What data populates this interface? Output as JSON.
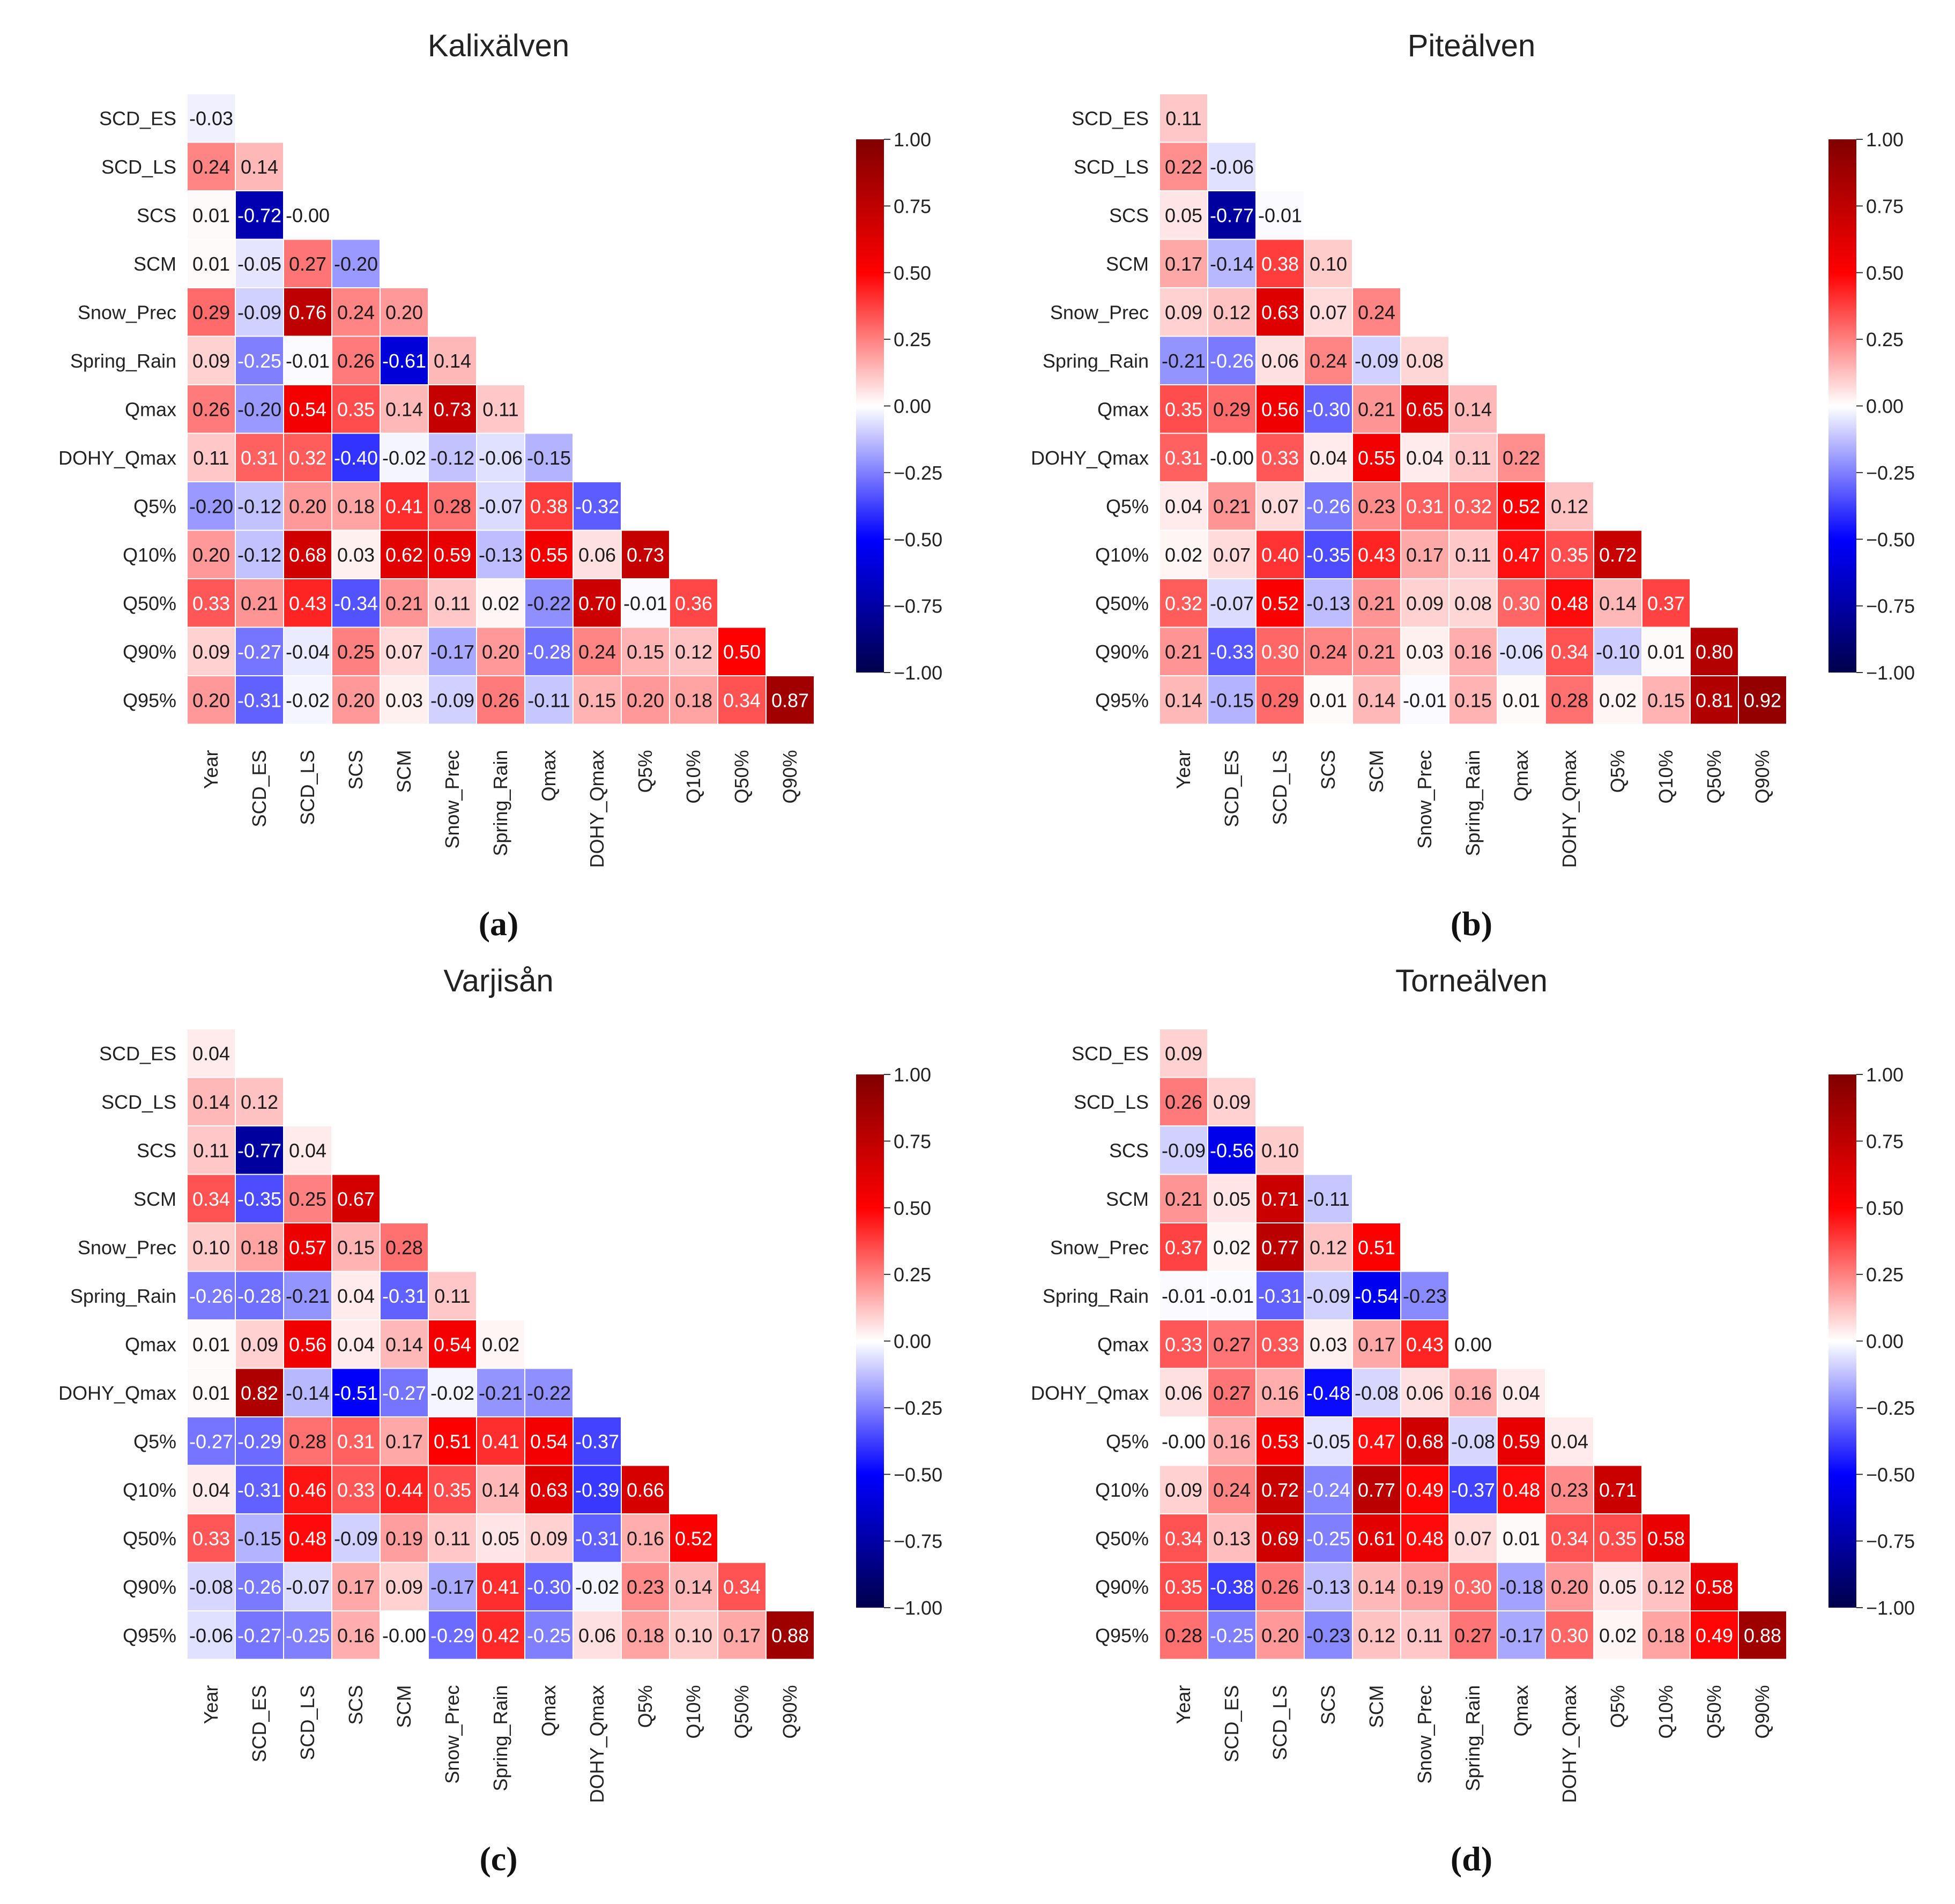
{
  "chart_data": [
    {
      "type": "heatmap",
      "panel_label": "(a)",
      "title": "Kalixälven",
      "row_labels": [
        "SCD_ES",
        "SCD_LS",
        "SCS",
        "SCM",
        "Snow_Prec",
        "Spring_Rain",
        "Qmax",
        "DOHY_Qmax",
        "Q5%",
        "Q10%",
        "Q50%",
        "Q90%",
        "Q95%"
      ],
      "col_labels": [
        "Year",
        "SCD_ES",
        "SCD_LS",
        "SCS",
        "SCM",
        "Snow_Prec",
        "Spring_Rain",
        "Qmax",
        "DOHY_Qmax",
        "Q5%",
        "Q10%",
        "Q50%",
        "Q90%"
      ],
      "values": [
        [
          -0.03
        ],
        [
          0.24,
          0.14
        ],
        [
          0.01,
          -0.72,
          -0.0
        ],
        [
          0.01,
          -0.05,
          0.27,
          -0.2
        ],
        [
          0.29,
          -0.09,
          0.76,
          0.24,
          0.2
        ],
        [
          0.09,
          -0.25,
          -0.01,
          0.26,
          -0.61,
          0.14
        ],
        [
          0.26,
          -0.2,
          0.54,
          0.35,
          0.14,
          0.73,
          0.11
        ],
        [
          0.11,
          0.31,
          0.32,
          -0.4,
          -0.02,
          -0.12,
          -0.06,
          -0.15
        ],
        [
          -0.2,
          -0.12,
          0.2,
          0.18,
          0.41,
          0.28,
          -0.07,
          0.38,
          -0.32
        ],
        [
          0.2,
          -0.12,
          0.68,
          0.03,
          0.62,
          0.59,
          -0.13,
          0.55,
          0.06,
          0.73
        ],
        [
          0.33,
          0.21,
          0.43,
          -0.34,
          0.21,
          0.11,
          0.02,
          -0.22,
          0.7,
          -0.01,
          0.36
        ],
        [
          0.09,
          -0.27,
          -0.04,
          0.25,
          0.07,
          -0.17,
          0.2,
          -0.28,
          0.24,
          0.15,
          0.12,
          0.5
        ],
        [
          0.2,
          -0.31,
          -0.02,
          0.2,
          0.03,
          -0.09,
          0.26,
          -0.11,
          0.15,
          0.2,
          0.18,
          0.34,
          0.87
        ]
      ],
      "colorbar": {
        "range": [
          -1,
          1
        ],
        "ticks": [
          "1.00",
          "0.75",
          "0.50",
          "0.25",
          "0.00",
          "−0.25",
          "−0.50",
          "−0.75",
          "−1.00"
        ],
        "colormap": "seismic"
      }
    },
    {
      "type": "heatmap",
      "panel_label": "(b)",
      "title": "Piteälven",
      "row_labels": [
        "SCD_ES",
        "SCD_LS",
        "SCS",
        "SCM",
        "Snow_Prec",
        "Spring_Rain",
        "Qmax",
        "DOHY_Qmax",
        "Q5%",
        "Q10%",
        "Q50%",
        "Q90%",
        "Q95%"
      ],
      "col_labels": [
        "Year",
        "SCD_ES",
        "SCD_LS",
        "SCS",
        "SCM",
        "Snow_Prec",
        "Spring_Rain",
        "Qmax",
        "DOHY_Qmax",
        "Q5%",
        "Q10%",
        "Q50%",
        "Q90%"
      ],
      "values": [
        [
          0.11
        ],
        [
          0.22,
          -0.06
        ],
        [
          0.05,
          -0.77,
          -0.01
        ],
        [
          0.17,
          -0.14,
          0.38,
          0.1
        ],
        [
          0.09,
          0.12,
          0.63,
          0.07,
          0.24
        ],
        [
          -0.21,
          -0.26,
          0.06,
          0.24,
          -0.09,
          0.08
        ],
        [
          0.35,
          0.29,
          0.56,
          -0.3,
          0.21,
          0.65,
          0.14
        ],
        [
          0.31,
          -0.0,
          0.33,
          0.04,
          0.55,
          0.04,
          0.11,
          0.22
        ],
        [
          0.04,
          0.21,
          0.07,
          -0.26,
          0.23,
          0.31,
          0.32,
          0.52,
          0.12
        ],
        [
          0.02,
          0.07,
          0.4,
          -0.35,
          0.43,
          0.17,
          0.11,
          0.47,
          0.35,
          0.72
        ],
        [
          0.32,
          -0.07,
          0.52,
          -0.13,
          0.21,
          0.09,
          0.08,
          0.3,
          0.48,
          0.14,
          0.37
        ],
        [
          0.21,
          -0.33,
          0.3,
          0.24,
          0.21,
          0.03,
          0.16,
          -0.06,
          0.34,
          -0.1,
          0.01,
          0.8
        ],
        [
          0.14,
          -0.15,
          0.29,
          0.01,
          0.14,
          -0.01,
          0.15,
          0.01,
          0.28,
          0.02,
          0.15,
          0.81,
          0.92
        ]
      ],
      "colorbar": {
        "range": [
          -1,
          1
        ],
        "ticks": [
          "1.00",
          "0.75",
          "0.50",
          "0.25",
          "0.00",
          "−0.25",
          "−0.50",
          "−0.75",
          "−1.00"
        ],
        "colormap": "seismic"
      }
    },
    {
      "type": "heatmap",
      "panel_label": "(c)",
      "title": "Varjisån",
      "row_labels": [
        "SCD_ES",
        "SCD_LS",
        "SCS",
        "SCM",
        "Snow_Prec",
        "Spring_Rain",
        "Qmax",
        "DOHY_Qmax",
        "Q5%",
        "Q10%",
        "Q50%",
        "Q90%",
        "Q95%"
      ],
      "col_labels": [
        "Year",
        "SCD_ES",
        "SCD_LS",
        "SCS",
        "SCM",
        "Snow_Prec",
        "Spring_Rain",
        "Qmax",
        "DOHY_Qmax",
        "Q5%",
        "Q10%",
        "Q50%",
        "Q90%"
      ],
      "values": [
        [
          0.04
        ],
        [
          0.14,
          0.12
        ],
        [
          0.11,
          -0.77,
          0.04
        ],
        [
          0.34,
          -0.35,
          0.25,
          0.67
        ],
        [
          0.1,
          0.18,
          0.57,
          0.15,
          0.28
        ],
        [
          -0.26,
          -0.28,
          -0.21,
          0.04,
          -0.31,
          0.11
        ],
        [
          0.01,
          0.09,
          0.56,
          0.04,
          0.14,
          0.54,
          0.02
        ],
        [
          0.01,
          0.82,
          -0.14,
          -0.51,
          -0.27,
          -0.02,
          -0.21,
          -0.22
        ],
        [
          -0.27,
          -0.29,
          0.28,
          0.31,
          0.17,
          0.51,
          0.41,
          0.54,
          -0.37
        ],
        [
          0.04,
          -0.31,
          0.46,
          0.33,
          0.44,
          0.35,
          0.14,
          0.63,
          -0.39,
          0.66
        ],
        [
          0.33,
          -0.15,
          0.48,
          -0.09,
          0.19,
          0.11,
          0.05,
          0.09,
          -0.31,
          0.16,
          0.52
        ],
        [
          -0.08,
          -0.26,
          -0.07,
          0.17,
          0.09,
          -0.17,
          0.41,
          -0.3,
          -0.02,
          0.23,
          0.14,
          0.34
        ],
        [
          -0.06,
          -0.27,
          -0.25,
          0.16,
          -0.0,
          -0.29,
          0.42,
          -0.25,
          0.06,
          0.18,
          0.1,
          0.17,
          0.88
        ]
      ],
      "colorbar": {
        "range": [
          -1,
          1
        ],
        "ticks": [
          "1.00",
          "0.75",
          "0.50",
          "0.25",
          "0.00",
          "−0.25",
          "−0.50",
          "−0.75",
          "−1.00"
        ],
        "colormap": "seismic"
      }
    },
    {
      "type": "heatmap",
      "panel_label": "(d)",
      "title": "Torneälven",
      "row_labels": [
        "SCD_ES",
        "SCD_LS",
        "SCS",
        "SCM",
        "Snow_Prec",
        "Spring_Rain",
        "Qmax",
        "DOHY_Qmax",
        "Q5%",
        "Q10%",
        "Q50%",
        "Q90%",
        "Q95%"
      ],
      "col_labels": [
        "Year",
        "SCD_ES",
        "SCD_LS",
        "SCS",
        "SCM",
        "Snow_Prec",
        "Spring_Rain",
        "Qmax",
        "DOHY_Qmax",
        "Q5%",
        "Q10%",
        "Q50%",
        "Q90%"
      ],
      "values": [
        [
          0.09
        ],
        [
          0.26,
          0.09
        ],
        [
          -0.09,
          -0.56,
          0.1
        ],
        [
          0.21,
          0.05,
          0.71,
          -0.11
        ],
        [
          0.37,
          0.02,
          0.77,
          0.12,
          0.51
        ],
        [
          -0.01,
          -0.01,
          -0.31,
          -0.09,
          -0.54,
          -0.23
        ],
        [
          0.33,
          0.27,
          0.33,
          0.03,
          0.17,
          0.43,
          0.0
        ],
        [
          0.06,
          0.27,
          0.16,
          -0.48,
          -0.08,
          0.06,
          0.16,
          0.04
        ],
        [
          -0.0,
          0.16,
          0.53,
          -0.05,
          0.47,
          0.68,
          -0.08,
          0.59,
          0.04
        ],
        [
          0.09,
          0.24,
          0.72,
          -0.24,
          0.77,
          0.49,
          -0.37,
          0.48,
          0.23,
          0.71
        ],
        [
          0.34,
          0.13,
          0.69,
          -0.25,
          0.61,
          0.48,
          0.07,
          0.01,
          0.34,
          0.35,
          0.58
        ],
        [
          0.35,
          -0.38,
          0.26,
          -0.13,
          0.14,
          0.19,
          0.3,
          -0.18,
          0.2,
          0.05,
          0.12,
          0.58
        ],
        [
          0.28,
          -0.25,
          0.2,
          -0.23,
          0.12,
          0.11,
          0.27,
          -0.17,
          0.3,
          0.02,
          0.18,
          0.49,
          0.88
        ]
      ],
      "colorbar": {
        "range": [
          -1,
          1
        ],
        "ticks": [
          "1.00",
          "0.75",
          "0.50",
          "0.25",
          "0.00",
          "−0.25",
          "−0.50",
          "−0.75",
          "−1.00"
        ],
        "colormap": "seismic"
      }
    }
  ]
}
